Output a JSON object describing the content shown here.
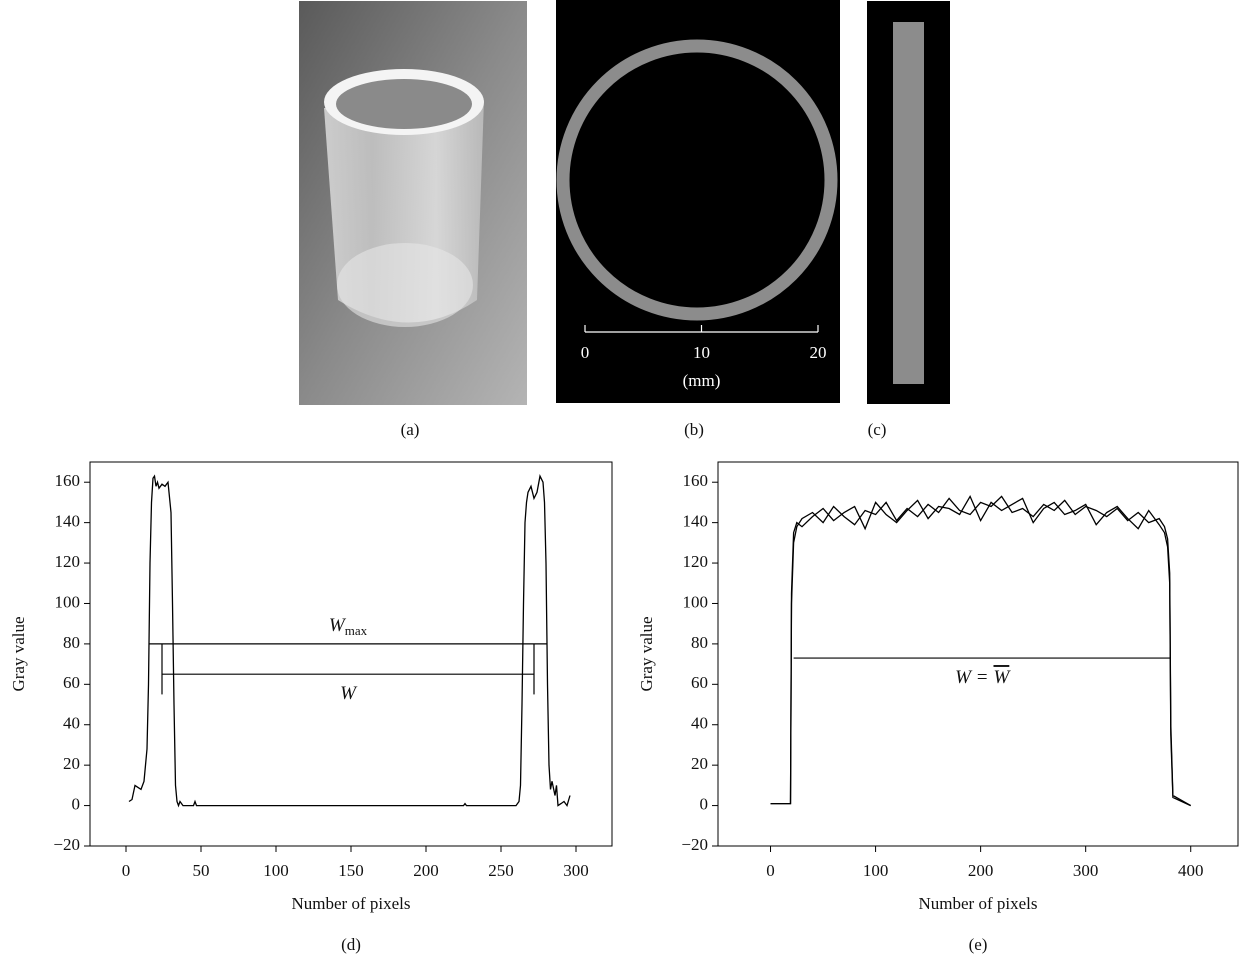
{
  "panels": [
    {
      "label": "(a)"
    },
    {
      "label": "(b)",
      "scale": {
        "range": [
          0,
          20
        ],
        "ticks": [
          0,
          10,
          20
        ],
        "unit": "(mm)"
      }
    },
    {
      "label": "(c)"
    }
  ],
  "chart_data": [
    {
      "type": "line",
      "caption": "(d)",
      "x_label": "Number of pixels",
      "y_label": "Gray value",
      "xlim": [
        -24,
        324
      ],
      "xticks": [
        0,
        50,
        100,
        150,
        200,
        250,
        300
      ],
      "ylim": [
        -20,
        170
      ],
      "yticks": [
        {
          "value": -20,
          "label": "−20"
        },
        0,
        20,
        40,
        60,
        80,
        100,
        120,
        140,
        160
      ],
      "x": [
        2,
        4,
        6,
        8,
        10,
        12,
        14,
        15,
        16,
        17,
        18,
        19,
        20,
        21,
        22,
        24,
        26,
        28,
        30,
        31,
        32,
        33,
        34,
        35,
        36,
        38,
        45,
        46,
        47,
        100,
        200,
        225,
        226,
        227,
        260,
        262,
        263,
        264,
        265,
        266,
        267,
        268,
        270,
        272,
        274,
        276,
        278,
        279,
        280,
        281,
        282,
        283,
        284,
        286,
        287,
        288,
        290,
        292,
        294,
        296
      ],
      "series": [
        {
          "color": "#000000",
          "values": [
            2,
            3,
            10,
            9,
            8,
            12,
            28,
            60,
            120,
            150,
            162,
            163,
            158,
            160,
            157,
            159,
            158,
            160,
            145,
            100,
            50,
            10,
            2,
            0,
            2,
            0,
            0,
            2,
            0,
            0,
            0,
            0,
            1,
            0,
            0,
            2,
            10,
            50,
            100,
            140,
            150,
            155,
            158,
            152,
            155,
            163,
            160,
            150,
            120,
            60,
            20,
            8,
            12,
            5,
            10,
            0,
            1,
            2,
            0,
            5
          ]
        }
      ],
      "annotations": [
        {
          "text": "W",
          "sub": "max",
          "y": 80,
          "x": [
            15,
            281
          ],
          "side": "above"
        },
        {
          "text": "W",
          "y": 65,
          "x": [
            24,
            272
          ],
          "side": "below"
        }
      ],
      "markers": [
        {
          "x": 24,
          "y": [
            55,
            80
          ]
        },
        {
          "x": 272,
          "y": [
            55,
            80
          ]
        }
      ]
    },
    {
      "type": "line",
      "caption": "(e)",
      "x_label": "Number of pixels",
      "y_label": "Gray value",
      "xlim": [
        -50,
        445
      ],
      "xticks": [
        0,
        100,
        200,
        300,
        400
      ],
      "ylim": [
        -20,
        170
      ],
      "yticks": [
        {
          "value": -20,
          "label": "−20"
        },
        0,
        20,
        40,
        60,
        80,
        100,
        120,
        140,
        160
      ],
      "x": [
        0,
        18,
        19,
        20,
        22,
        25,
        30,
        40,
        50,
        60,
        70,
        80,
        90,
        100,
        110,
        120,
        130,
        140,
        150,
        160,
        170,
        180,
        190,
        200,
        210,
        220,
        230,
        240,
        250,
        260,
        270,
        280,
        290,
        300,
        310,
        320,
        330,
        340,
        350,
        360,
        370,
        375,
        378,
        380,
        381,
        383,
        400
      ],
      "series": [
        {
          "color": "#000000",
          "values": [
            1,
            1,
            1,
            100,
            130,
            138,
            142,
            145,
            140,
            148,
            143,
            139,
            146,
            144,
            150,
            141,
            147,
            143,
            149,
            145,
            152,
            146,
            144,
            150,
            148,
            153,
            145,
            147,
            143,
            149,
            146,
            151,
            144,
            148,
            146,
            143,
            147,
            141,
            145,
            140,
            142,
            138,
            132,
            115,
            40,
            5,
            0
          ]
        },
        {
          "color": "#000000",
          "values": [
            1,
            1,
            1,
            105,
            135,
            140,
            138,
            143,
            147,
            141,
            145,
            148,
            137,
            150,
            144,
            140,
            146,
            151,
            142,
            148,
            147,
            144,
            153,
            141,
            150,
            146,
            149,
            152,
            140,
            147,
            150,
            144,
            146,
            149,
            139,
            145,
            148,
            142,
            137,
            146,
            139,
            135,
            128,
            110,
            35,
            4,
            0
          ]
        }
      ],
      "annotations": [
        {
          "text": "W =",
          "over": "W",
          "y": 73,
          "x": [
            22,
            381
          ],
          "side": "below"
        }
      ]
    }
  ]
}
